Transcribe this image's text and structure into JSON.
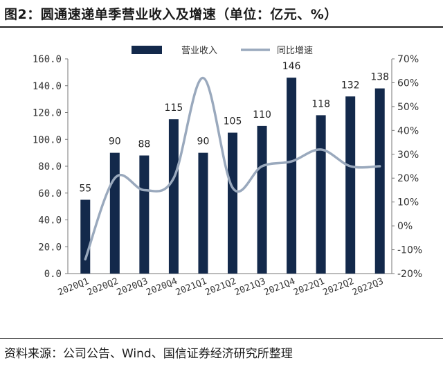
{
  "header": {
    "title": "图2：圆通速递单季营业收入及增速（单位：亿元、%）"
  },
  "footer": {
    "source": "资料来源：公司公告、Wind、国信证券经济研究所整理"
  },
  "colors": {
    "bar": "#13294b",
    "line": "#9aa9bd"
  },
  "chart_data": {
    "type": "bar",
    "categories": [
      "2020Q1",
      "2020Q2",
      "2020Q3",
      "2020Q4",
      "2021Q1",
      "2021Q2",
      "2021Q3",
      "2021Q4",
      "2022Q1",
      "2022Q2",
      "2022Q3"
    ],
    "series": [
      {
        "name": "营业收入",
        "type": "bar",
        "axis": "left",
        "values": [
          55,
          90,
          88,
          115,
          90,
          105,
          110,
          146,
          118,
          132,
          138
        ]
      },
      {
        "name": "同比增速",
        "type": "line",
        "axis": "right",
        "values": [
          -14,
          20,
          15,
          20,
          62,
          16,
          25,
          27,
          32,
          25,
          25
        ]
      }
    ],
    "left_axis": {
      "ylim": [
        0,
        160
      ],
      "ticks": [
        "0.0",
        "20.0",
        "40.0",
        "60.0",
        "80.0",
        "100.0",
        "120.0",
        "140.0",
        "160.0"
      ]
    },
    "right_axis": {
      "ylim": [
        -20,
        70
      ],
      "ticks": [
        "-20%",
        "-10%",
        "0%",
        "10%",
        "20%",
        "30%",
        "40%",
        "50%",
        "60%",
        "70%"
      ]
    },
    "data_labels": [
      "55",
      "90",
      "88",
      "115",
      "90",
      "105",
      "110",
      "146",
      "118",
      "132",
      "138"
    ],
    "legend": {
      "position": "top"
    },
    "grid": false
  }
}
